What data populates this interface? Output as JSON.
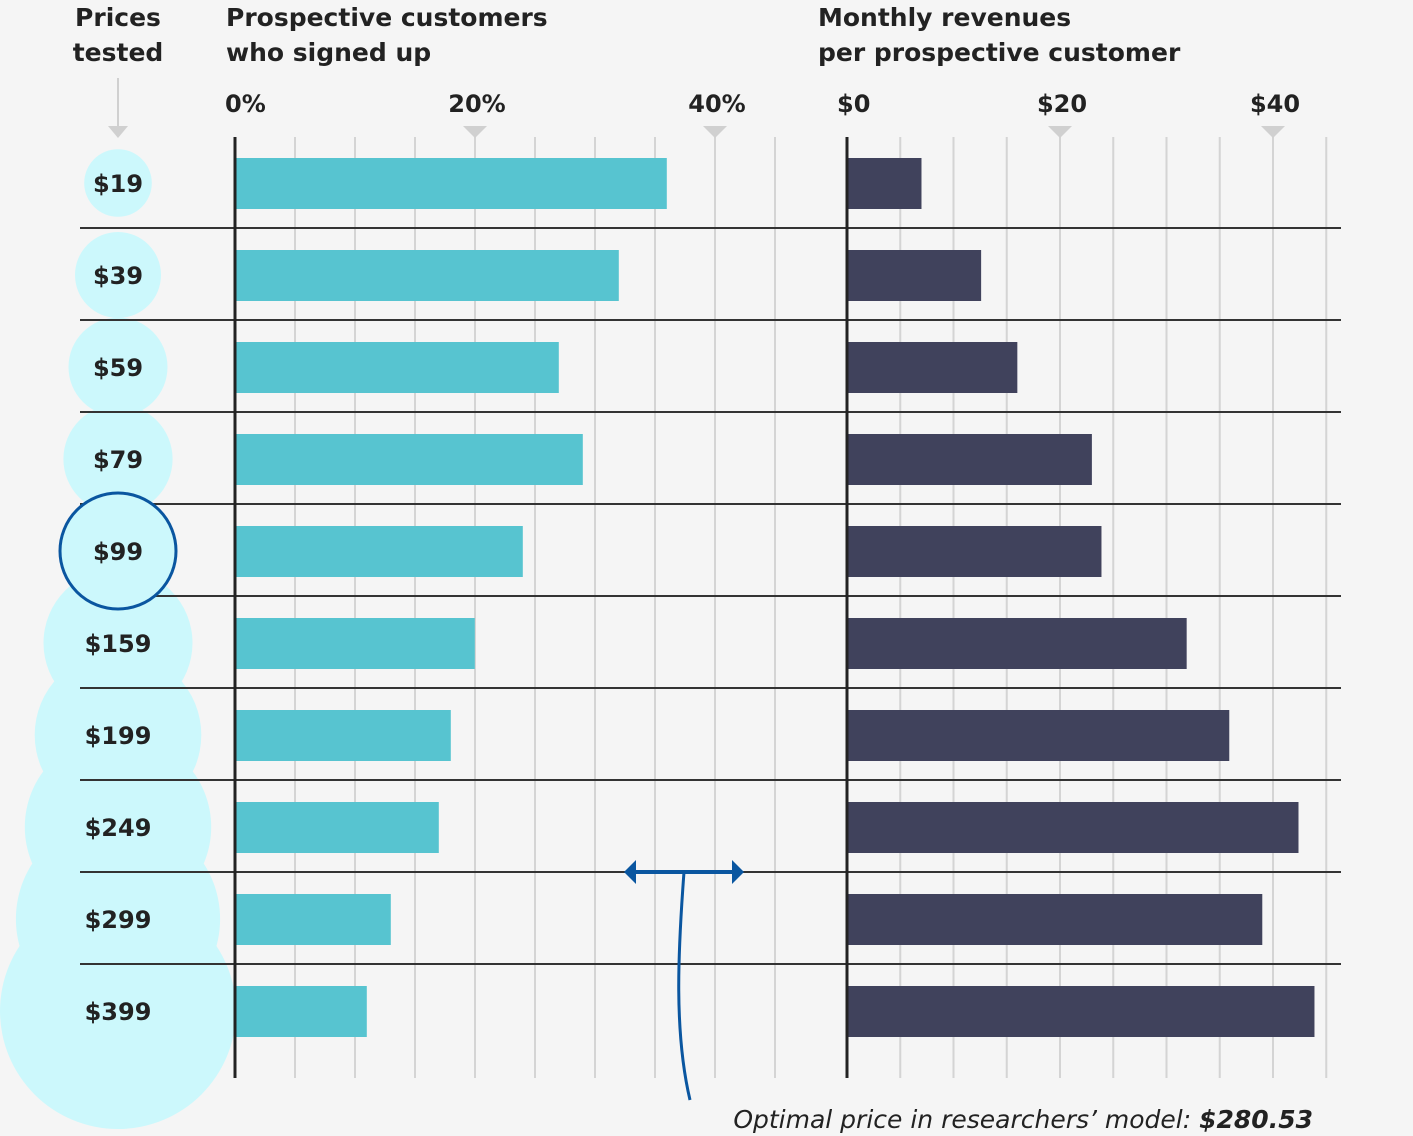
{
  "chart_data": {
    "type": "bar",
    "headers": {
      "prices": [
        "Prices",
        "tested"
      ],
      "signups": [
        "Prospective customers",
        "who signed up"
      ],
      "revenue": [
        "Monthly revenues",
        "per prospective customer"
      ]
    },
    "categories": [
      "$19",
      "$39",
      "$59",
      "$79",
      "$99",
      "$159",
      "$199",
      "$249",
      "$299",
      "$399"
    ],
    "price_values": [
      19,
      39,
      59,
      79,
      99,
      159,
      199,
      249,
      299,
      399
    ],
    "highlighted_category": "$99",
    "series": [
      {
        "name": "Prospective customers who signed up",
        "unit": "%",
        "values": [
          35.9,
          31.9,
          26.9,
          28.9,
          23.9,
          19.9,
          17.9,
          16.9,
          12.9,
          10.9
        ],
        "xlim": [
          0,
          45
        ],
        "ticks": [
          0,
          20,
          40
        ],
        "tick_labels": [
          "0%",
          "20%",
          "40%"
        ],
        "minor_step": 5,
        "color": "#57c4d0"
      },
      {
        "name": "Monthly revenues per prospective customer",
        "unit": "$",
        "values": [
          6.9,
          12.5,
          15.9,
          22.9,
          23.8,
          31.8,
          35.8,
          42.3,
          38.9,
          43.8
        ],
        "xlim": [
          0,
          45
        ],
        "ticks": [
          0,
          20,
          40
        ],
        "tick_labels": [
          "$0",
          "$20",
          "$40"
        ],
        "minor_step": 5,
        "color": "#40425c"
      }
    ],
    "annotation": {
      "text": "Optimal price in researchers’ model: ",
      "value": "$280.53",
      "between": [
        "$249",
        "$299"
      ]
    },
    "grid": true,
    "colors": {
      "background": "#f5f5f5",
      "bubble": "#ccf8fc",
      "highlight_ring": "#0a56a0",
      "annotation": "#0a56a0",
      "axis": "#333333",
      "grid": "#d4d4d4"
    }
  }
}
